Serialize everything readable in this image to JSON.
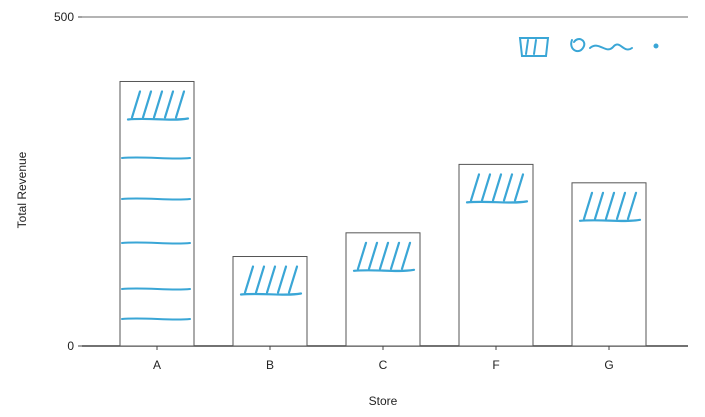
{
  "chart_data": {
    "type": "bar",
    "categories": [
      "A",
      "B",
      "C",
      "F",
      "G"
    ],
    "values": [
      402,
      136,
      172,
      276,
      248
    ],
    "xlabel": "Store",
    "ylabel": "Total Revenue",
    "ylim": [
      0,
      500
    ],
    "y_ticks": [
      "0",
      "500"
    ],
    "grid": false,
    "colors": {
      "bar_fill": "#ffffff",
      "bar_edge": "#555555",
      "annotation": "#3aa6d6",
      "axis": "#444444"
    }
  }
}
